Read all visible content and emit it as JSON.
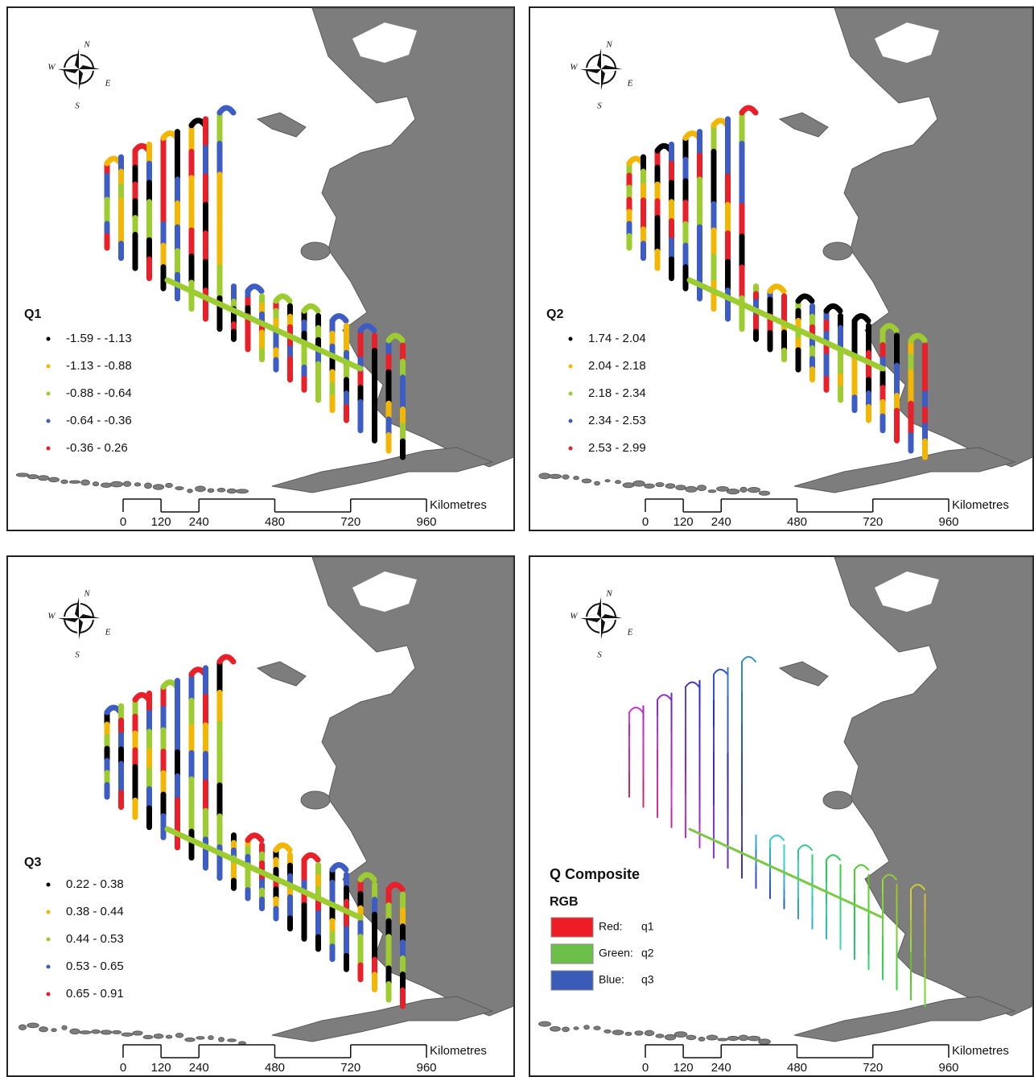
{
  "class_colors": [
    "#000000",
    "#f2b705",
    "#9ccc2f",
    "#3d5cc4",
    "#e8202a"
  ],
  "compass": [
    "N",
    "E",
    "S",
    "W"
  ],
  "scale_bar": {
    "ticks": [
      0,
      120,
      240,
      480,
      720,
      960
    ],
    "unit": "Kilometres"
  },
  "panels": [
    {
      "legend": {
        "title": "Q1",
        "items": [
          "-1.59 - -1.13",
          "-1.13 - -0.88",
          "-0.88 - -0.64",
          "-0.64 - -0.36",
          "-0.36 - 0.26"
        ]
      }
    },
    {
      "legend": {
        "title": "Q2",
        "items": [
          "1.74 - 2.04",
          "2.04 - 2.18",
          "2.18 - 2.34",
          "2.34 - 2.53",
          "2.53 - 2.99"
        ]
      }
    },
    {
      "legend": {
        "title": "Q3",
        "items": [
          "0.22 - 0.38",
          "0.38 - 0.44",
          "0.44 - 0.53",
          "0.53 - 0.65",
          "0.65 - 0.91"
        ]
      }
    },
    {
      "legend": {
        "title": "Q Composite",
        "subtitle": "RGB",
        "items": [
          {
            "channel": "Red:",
            "field": "q1",
            "color": "#ee1c25"
          },
          {
            "channel": "Green:",
            "field": "q2",
            "color": "#6cc04a"
          },
          {
            "channel": "Blue:",
            "field": "q3",
            "color": "#3a5bb8"
          }
        ]
      }
    }
  ]
}
